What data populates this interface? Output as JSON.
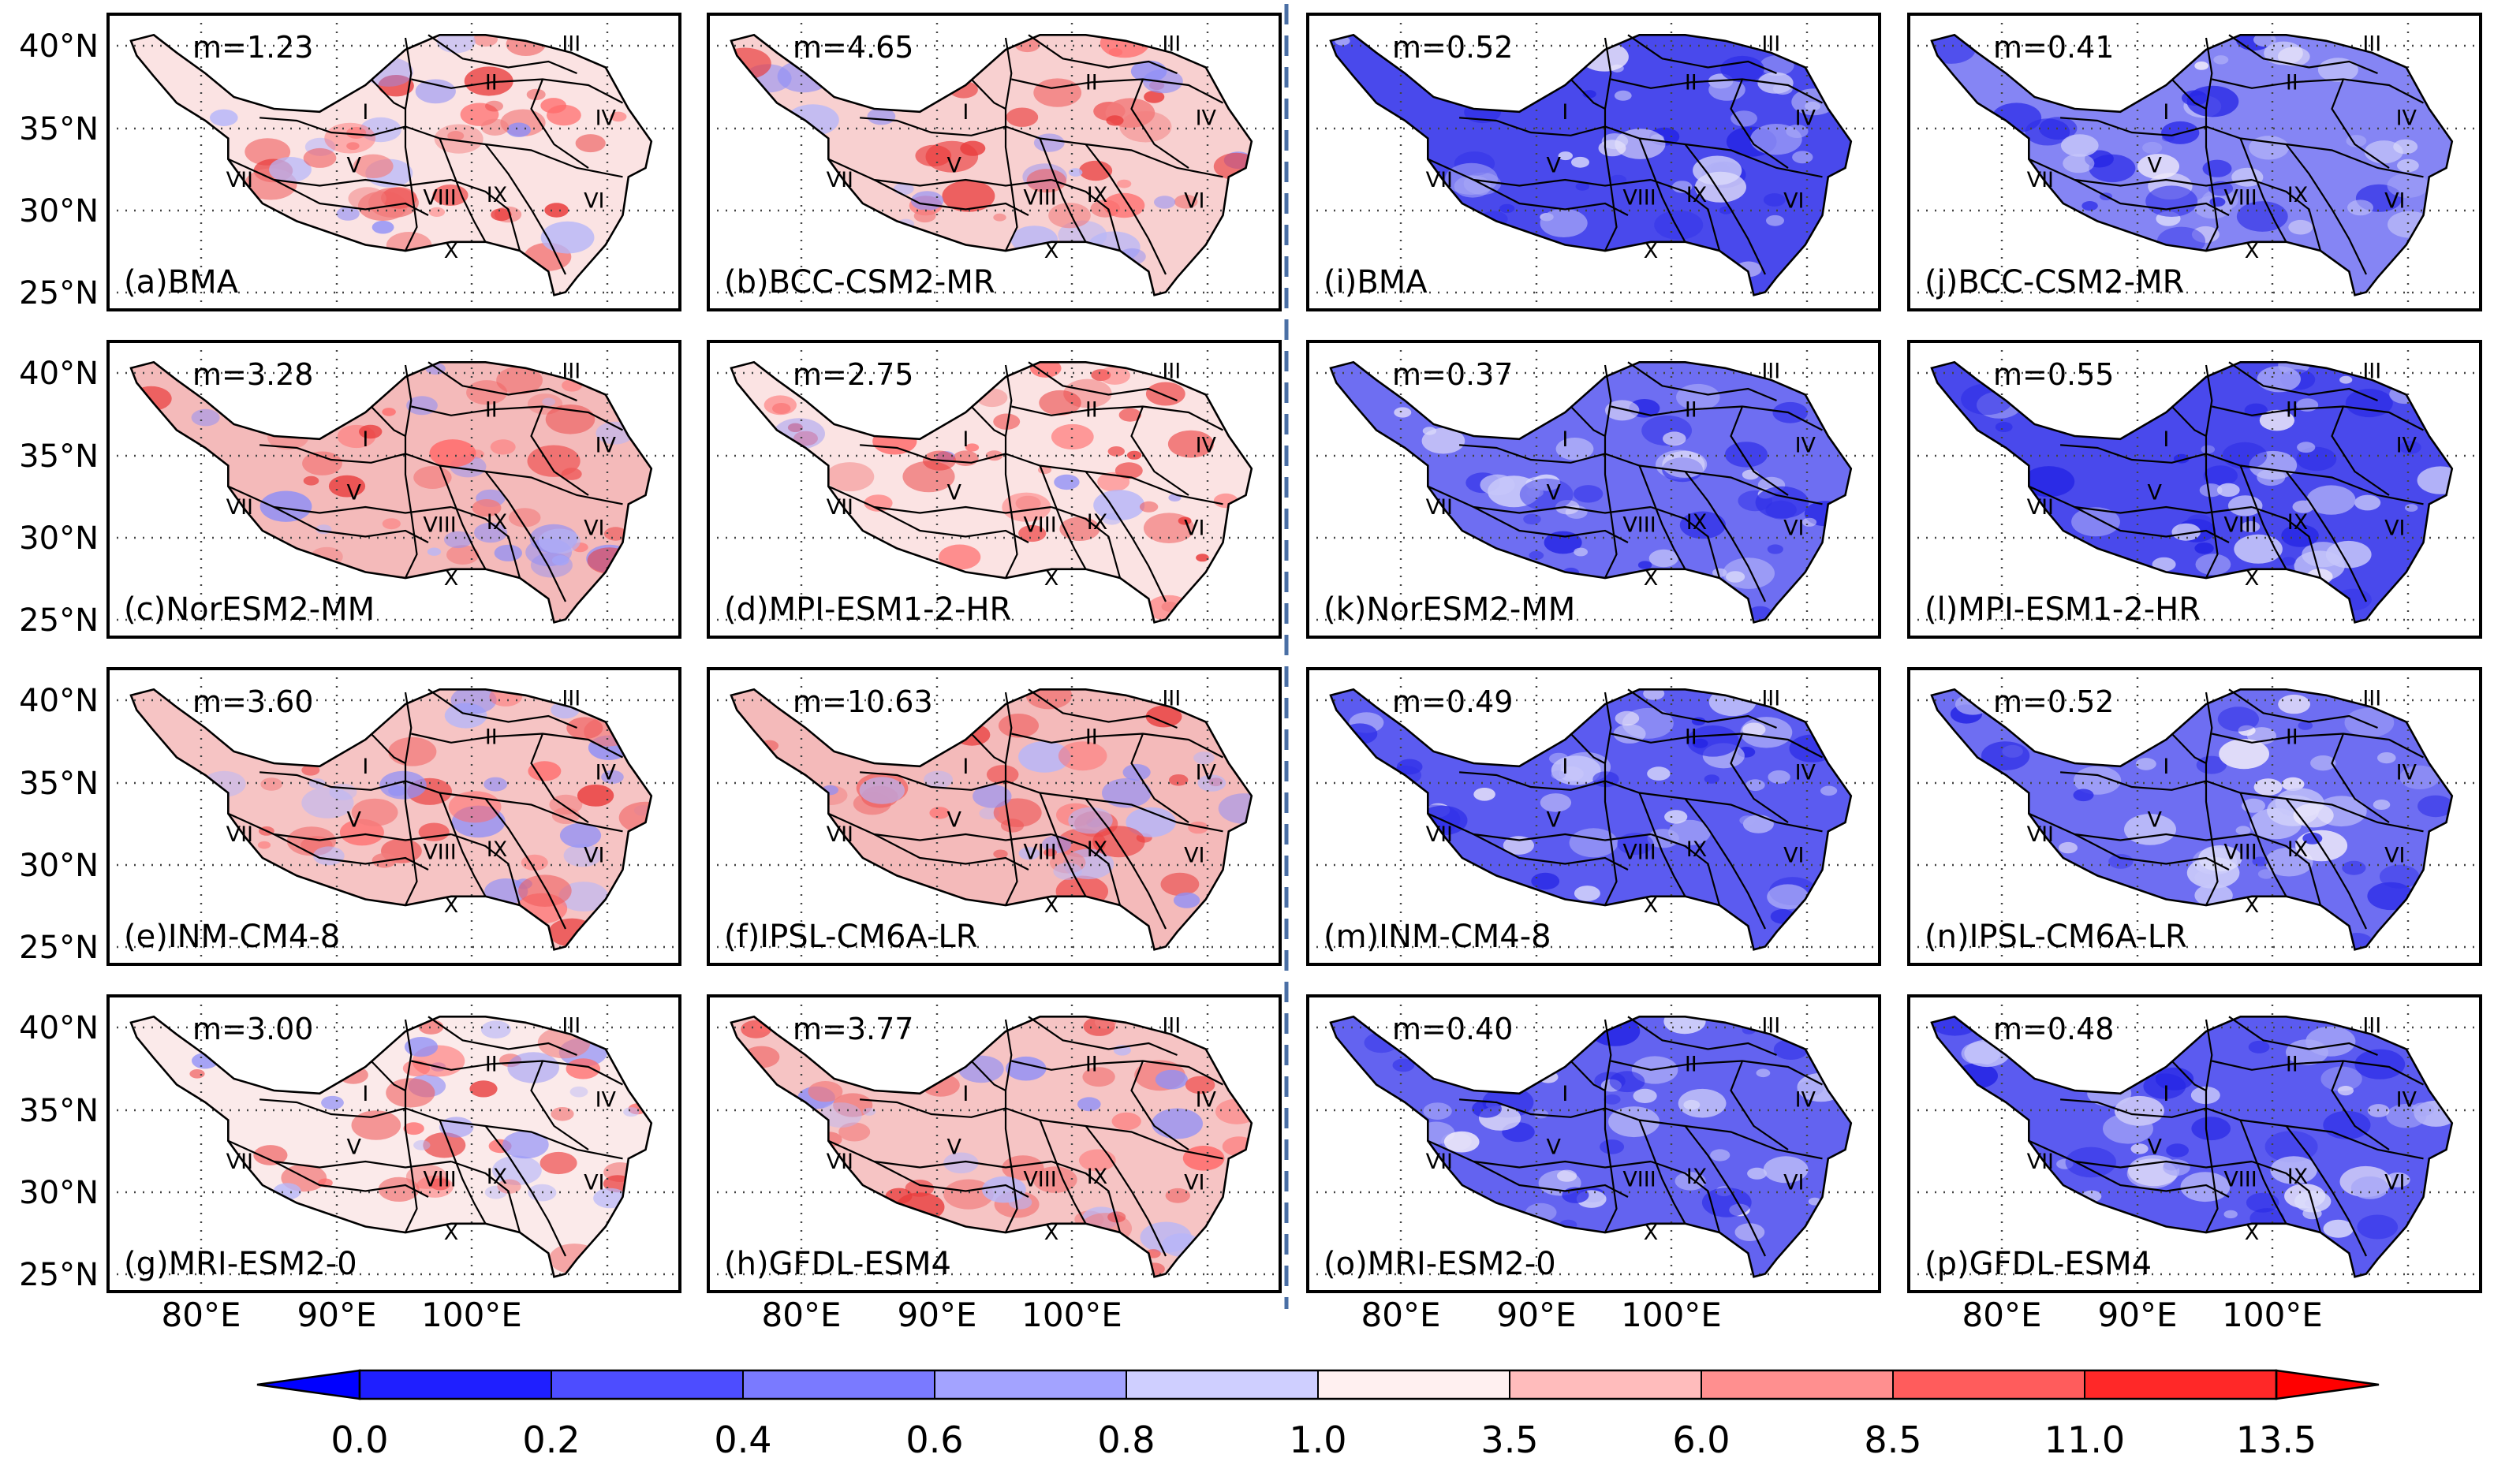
{
  "figure": {
    "lat_labels": [
      "40°N",
      "35°N",
      "30°N",
      "25°N"
    ],
    "lon_labels": [
      "80°E",
      "90°E",
      "100°E"
    ],
    "panels": [
      {
        "label": "(a)BMA",
        "m": "m=1.23",
        "mode": "red"
      },
      {
        "label": "(b)BCC-CSM2-MR",
        "m": "m=4.65",
        "mode": "red"
      },
      {
        "label": "(i)BMA",
        "m": "m=0.52",
        "mode": "blue"
      },
      {
        "label": "(j)BCC-CSM2-MR",
        "m": "m=0.41",
        "mode": "blue"
      },
      {
        "label": "(c)NorESM2-MM",
        "m": "m=3.28",
        "mode": "red"
      },
      {
        "label": "(d)MPI-ESM1-2-HR",
        "m": "m=2.75",
        "mode": "red"
      },
      {
        "label": "(k)NorESM2-MM",
        "m": "m=0.37",
        "mode": "blue"
      },
      {
        "label": "(l)MPI-ESM1-2-HR",
        "m": "m=0.55",
        "mode": "blue"
      },
      {
        "label": "(e)INM-CM4-8",
        "m": "m=3.60",
        "mode": "red"
      },
      {
        "label": "(f)IPSL-CM6A-LR",
        "m": "m=10.63",
        "mode": "red"
      },
      {
        "label": "(m)INM-CM4-8",
        "m": "m=0.49",
        "mode": "blue"
      },
      {
        "label": "(n)IPSL-CM6A-LR",
        "m": "m=0.52",
        "mode": "blue"
      },
      {
        "label": "(g)MRI-ESM2-0",
        "m": "m=3.00",
        "mode": "red"
      },
      {
        "label": "(h)GFDL-ESM4",
        "m": "m=3.77",
        "mode": "red"
      },
      {
        "label": "(o)MRI-ESM2-0",
        "m": "m=0.40",
        "mode": "blue"
      },
      {
        "label": "(p)GFDL-ESM4",
        "m": "m=0.48",
        "mode": "blue"
      }
    ],
    "region_labels": [
      "I",
      "II",
      "III",
      "IV",
      "V",
      "VI",
      "VII",
      "VIII",
      "IX",
      "X"
    ]
  },
  "colorbar": {
    "ticks": [
      "0.0",
      "0.2",
      "0.4",
      "0.6",
      "0.8",
      "1.0",
      "3.5",
      "6.0",
      "8.5",
      "11.0",
      "13.5"
    ],
    "colors": [
      "#1f1fff",
      "#4d4dff",
      "#7a7aff",
      "#a3a3ff",
      "#cfcfff",
      "#fff0f0",
      "#ffbcbc",
      "#ff8f8f",
      "#ff5c5c",
      "#ff2828"
    ],
    "extend_min_color": "#0000ff",
    "extend_max_color": "#ff0000"
  }
}
